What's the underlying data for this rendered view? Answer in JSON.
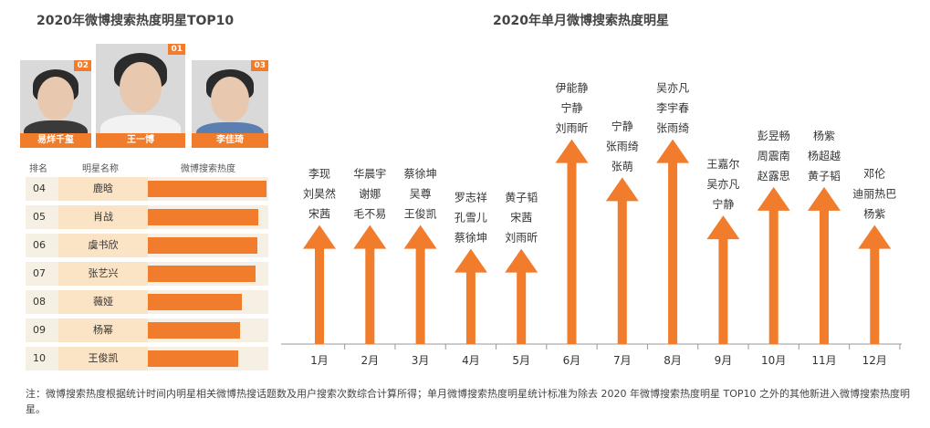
{
  "left_title": "2020年微博搜索热度明星TOP10",
  "right_title": "2020年单月微博搜索热度明星",
  "top3": [
    {
      "rank": "02",
      "name": "易烊千玺"
    },
    {
      "rank": "01",
      "name": "王一博"
    },
    {
      "rank": "03",
      "name": "李佳琦"
    }
  ],
  "table": {
    "headers": [
      "排名",
      "明星名称",
      "微博搜索热度"
    ],
    "rows": [
      {
        "rank": "04",
        "name": "鹿晗",
        "heat": 1.0
      },
      {
        "rank": "05",
        "name": "肖战",
        "heat": 0.93
      },
      {
        "rank": "06",
        "name": "虞书欣",
        "heat": 0.92
      },
      {
        "rank": "07",
        "name": "张艺兴",
        "heat": 0.91
      },
      {
        "rank": "08",
        "name": "薇娅",
        "heat": 0.79
      },
      {
        "rank": "09",
        "name": "杨幂",
        "heat": 0.78
      },
      {
        "rank": "10",
        "name": "王俊凯",
        "heat": 0.76
      }
    ]
  },
  "chart_data": {
    "type": "bar",
    "title": "2020年单月微博搜索热度明星",
    "categories": [
      "1月",
      "2月",
      "3月",
      "4月",
      "5月",
      "6月",
      "7月",
      "8月",
      "9月",
      "10月",
      "11月",
      "12月"
    ],
    "values": [
      125,
      125,
      125,
      100,
      100,
      215,
      175,
      215,
      135,
      165,
      165,
      125
    ],
    "labels": [
      [
        "李现",
        "刘昊然",
        "宋茜"
      ],
      [
        "华晨宇",
        "谢娜",
        "毛不易"
      ],
      [
        "蔡徐坤",
        "吴尊",
        "王俊凯"
      ],
      [
        "罗志祥",
        "孔雪儿",
        "蔡徐坤"
      ],
      [
        "黄子韬",
        "宋茜",
        "刘雨昕"
      ],
      [
        "伊能静",
        "宁静",
        "刘雨昕"
      ],
      [
        "宁静",
        "张雨绮",
        "张萌"
      ],
      [
        "吴亦凡",
        "李宇春",
        "张雨绮"
      ],
      [
        "王嘉尔",
        "吴亦凡",
        "宁静"
      ],
      [
        "彭昱畅",
        "周震南",
        "赵露思"
      ],
      [
        "杨紫",
        "杨超越",
        "黄子韬"
      ],
      [
        "邓伦",
        "迪丽热巴",
        "杨紫"
      ]
    ],
    "colors": {
      "arrow": "#f07c2c",
      "axis": "#999999"
    }
  },
  "note": "注：微博搜索热度根据统计时间内明星相关微博热搜话题数及用户搜索次数综合计算所得；单月微博搜索热度明星统计标准为除去 2020 年微博搜索热度明星 TOP10 之外的其他新进入微博搜索热度明星。"
}
